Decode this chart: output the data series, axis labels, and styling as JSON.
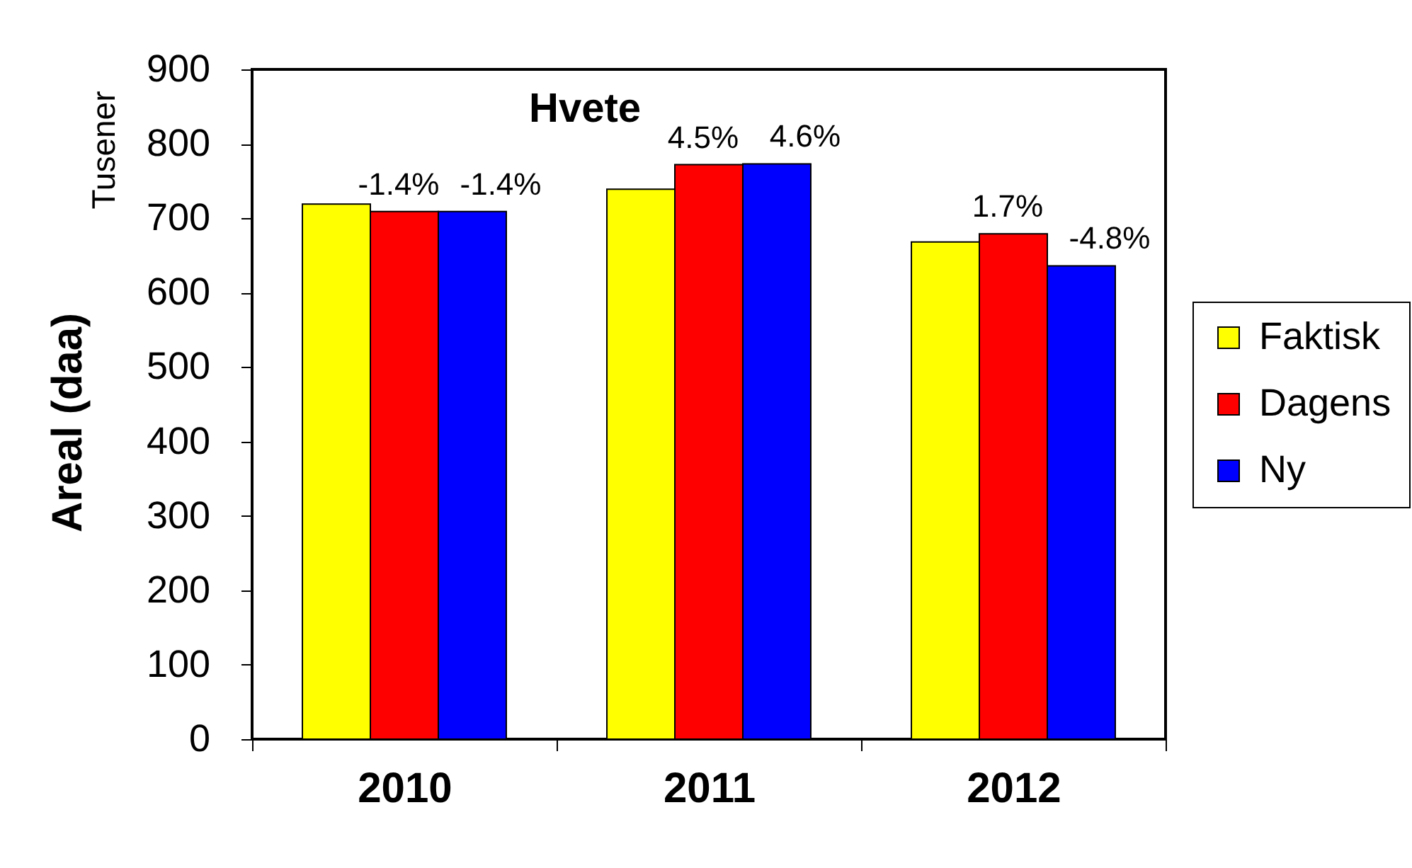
{
  "chart_data": {
    "type": "bar",
    "title": "Hvete",
    "ylabel": "Areal (daa)",
    "annotations": [
      "Tusener",
      {
        "text": "-1.4%",
        "x": "2010",
        "y": 709
      },
      {
        "text": "-1.4%",
        "x": "2010",
        "y": 709
      },
      {
        "text": "4.5%",
        "x": "2011",
        "y": 772
      },
      {
        "text": "4.6%",
        "x": "2011",
        "y": 773
      },
      {
        "text": "1.7%",
        "x": "2012",
        "y": 679
      },
      {
        "text": "-4.8%",
        "y": 636
      }
    ],
    "categories": [
      "2010",
      "2011",
      "2012"
    ],
    "series": [
      {
        "name": "Faktisk",
        "color": "#ffff00",
        "values": [
          719,
          739,
          668
        ]
      },
      {
        "name": "Dagens",
        "color": "#ff0000",
        "values": [
          709,
          772,
          679
        ]
      },
      {
        "name": "Ny",
        "color": "#0000ff",
        "values": [
          709,
          773,
          636
        ]
      }
    ],
    "ylim": [
      0,
      900
    ],
    "yticks": [
      0,
      100,
      200,
      300,
      400,
      500,
      600,
      700,
      800,
      900
    ],
    "grid": false,
    "legend": "right"
  }
}
